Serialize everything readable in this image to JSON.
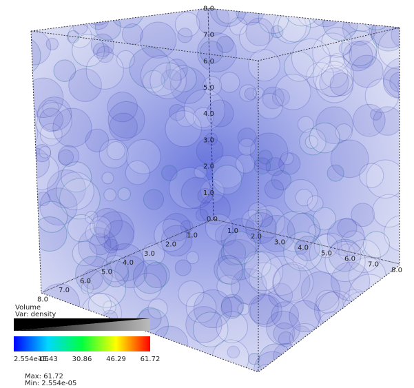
{
  "axes": {
    "vertical": [
      "0.0",
      "1.0",
      "2.0",
      "3.0",
      "4.0",
      "5.0",
      "6.0",
      "7.0",
      "8.0"
    ],
    "left": [
      "1.0",
      "2.0",
      "3.0",
      "4.0",
      "5.0",
      "6.0",
      "7.0",
      "8.0"
    ],
    "right": [
      "1.0",
      "2.0",
      "3.0",
      "4.0",
      "5.0",
      "6.0",
      "7.0",
      "8.0"
    ]
  },
  "legend": {
    "title": "Volume",
    "variable": "Var: density",
    "ticks": [
      "2.554e-05",
      "15.43",
      "30.86",
      "46.29",
      "61.72"
    ],
    "max": "Max: 61.72",
    "min": "Min: 2.554e-05"
  }
}
